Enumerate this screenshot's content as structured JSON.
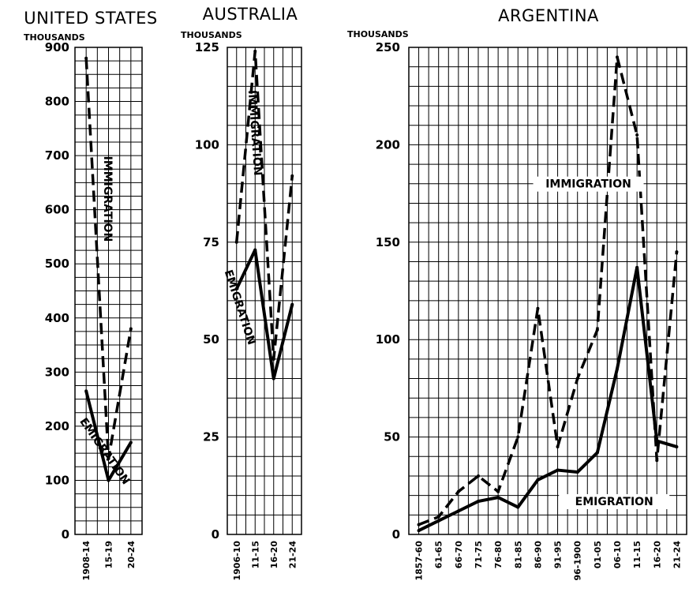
{
  "chart_data": [
    {
      "type": "line",
      "title": "UNITED STATES",
      "units": "THOUSANDS",
      "categories": [
        "1908-14",
        "15-19",
        "20-24"
      ],
      "ylim": [
        0,
        900
      ],
      "yticks": [
        0,
        100,
        200,
        300,
        400,
        500,
        600,
        700,
        800,
        900
      ],
      "series": [
        {
          "name": "IMMIGRATION",
          "style": "dashed",
          "values": [
            880,
            140,
            380
          ]
        },
        {
          "name": "EMIGRATION",
          "style": "solid",
          "values": [
            265,
            100,
            170
          ]
        }
      ]
    },
    {
      "type": "line",
      "title": "AUSTRALIA",
      "units": "THOUSANDS",
      "categories": [
        "1906-10",
        "11-15",
        "16-20",
        "21-24"
      ],
      "ylim": [
        0,
        125
      ],
      "yticks": [
        0,
        25,
        50,
        75,
        100,
        125
      ],
      "series": [
        {
          "name": "IMMIGRATION",
          "style": "dashed",
          "values": [
            75,
            124,
            45,
            92
          ]
        },
        {
          "name": "EMIGRATION",
          "style": "solid",
          "values": [
            63,
            73,
            40,
            59
          ]
        }
      ]
    },
    {
      "type": "line",
      "title": "ARGENTINA",
      "units": "THOUSANDS",
      "categories": [
        "1857-60",
        "61-65",
        "66-70",
        "71-75",
        "76-80",
        "81-85",
        "86-90",
        "91-95",
        "96-1900",
        "01-05",
        "06-10",
        "11-15",
        "16-20",
        "21-24"
      ],
      "ylim": [
        0,
        250
      ],
      "yticks": [
        0,
        50,
        100,
        150,
        200,
        250
      ],
      "series": [
        {
          "name": "IMMIGRATION",
          "style": "dashed",
          "values": [
            5,
            9,
            22,
            30,
            22,
            50,
            116,
            45,
            80,
            105,
            245,
            205,
            38,
            145
          ]
        },
        {
          "name": "EMIGRATION",
          "style": "solid",
          "values": [
            2,
            7,
            12,
            17,
            19,
            14,
            28,
            33,
            32,
            42,
            85,
            137,
            48,
            45
          ]
        }
      ]
    }
  ]
}
